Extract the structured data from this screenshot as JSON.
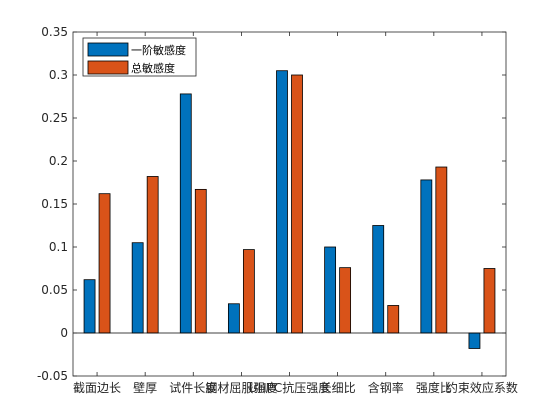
{
  "colors": {
    "series1": "#0072BD",
    "series2": "#D95319",
    "axis": "#262626",
    "bar_edge": "#000000",
    "background": "#ffffff"
  },
  "chart_data": {
    "type": "bar",
    "title": "",
    "xlabel": "",
    "ylabel": "",
    "categories": [
      "截面边长",
      "壁厚",
      "试件长度",
      "钢材屈服强度",
      "UHPC抗压强度",
      "长细比",
      "含钢率",
      "强度比",
      "约束效应系数"
    ],
    "series": [
      {
        "name": "一阶敏感度",
        "values": [
          0.062,
          0.105,
          0.278,
          0.034,
          0.305,
          0.1,
          0.125,
          0.178,
          -0.018
        ]
      },
      {
        "name": "总敏感度",
        "values": [
          0.162,
          0.182,
          0.167,
          0.097,
          0.3,
          0.076,
          0.032,
          0.193,
          0.075
        ]
      }
    ],
    "ylim": [
      -0.05,
      0.35
    ],
    "yticks": [
      -0.05,
      0,
      0.05,
      0.1,
      0.15,
      0.2,
      0.25,
      0.3,
      0.35
    ],
    "ytick_labels": [
      "-0.05",
      "0",
      "0.05",
      "0.1",
      "0.15",
      "0.2",
      "0.25",
      "0.3",
      "0.35"
    ],
    "grid": false,
    "legend_position": "top-left"
  }
}
